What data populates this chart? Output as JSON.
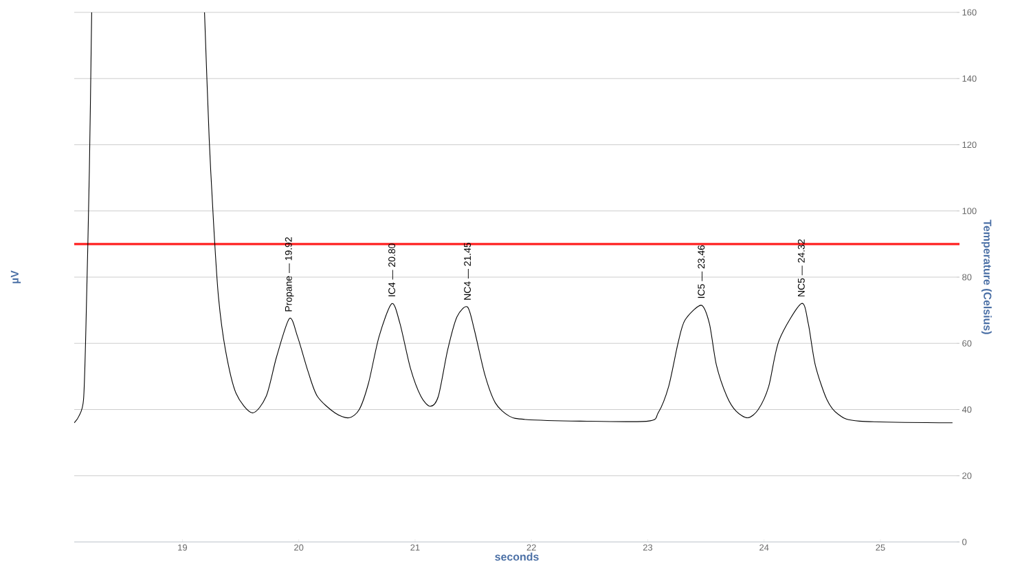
{
  "chart_data": {
    "type": "line",
    "xlabel": "seconds",
    "ylabel": "µV",
    "y2label": "Temperature (Celsius)",
    "x": [
      18.07,
      18.11,
      18.15,
      18.17,
      18.2,
      18.22,
      18.7,
      19.19,
      19.23,
      19.27,
      19.31,
      19.37,
      19.46,
      19.6,
      19.72,
      19.81,
      19.92,
      19.99,
      20.08,
      20.16,
      20.31,
      20.43,
      20.52,
      20.6,
      20.69,
      20.8,
      20.87,
      20.96,
      21.05,
      21.13,
      21.2,
      21.28,
      21.36,
      21.45,
      21.51,
      21.6,
      21.69,
      21.81,
      21.95,
      22.42,
      23.0,
      23.09,
      23.18,
      23.26,
      23.32,
      23.46,
      23.53,
      23.59,
      23.68,
      23.76,
      23.86,
      23.95,
      24.04,
      24.13,
      24.32,
      24.38,
      24.44,
      24.54,
      24.64,
      24.82,
      25.62
    ],
    "series": [
      {
        "color": "#000000",
        "axis": "y2",
        "values": [
          36,
          38,
          43,
          64,
          112,
          160,
          null,
          160,
          122,
          95,
          74,
          58,
          45,
          39,
          44,
          56,
          67.5,
          62,
          51.5,
          44,
          39,
          37.5,
          40,
          48,
          62,
          72,
          66,
          52.5,
          44,
          41,
          44,
          58,
          68,
          71,
          64,
          50.5,
          42,
          38,
          37,
          36.5,
          36.5,
          39,
          47,
          60,
          67,
          71.5,
          66,
          53.5,
          44,
          39.5,
          37.5,
          40,
          47,
          61,
          72,
          66,
          53.5,
          43,
          38.5,
          36.5,
          36
        ]
      }
    ],
    "xlim": [
      18.07,
      25.68
    ],
    "xticks": [
      19,
      20,
      21,
      22,
      23,
      24,
      25
    ],
    "y2lim": [
      0,
      160
    ],
    "y2ticks": [
      0,
      20,
      40,
      60,
      80,
      100,
      120,
      140,
      160
    ],
    "grid": "y",
    "ref_lines": [
      {
        "axis": "y2",
        "value": 90,
        "color": "#ff2020"
      }
    ],
    "annotations": [
      "Propane — 19.92",
      "IC4 — 20.80",
      "NC4 — 21.45",
      "IC5 — 23.46",
      "NC5 — 24.32"
    ]
  }
}
